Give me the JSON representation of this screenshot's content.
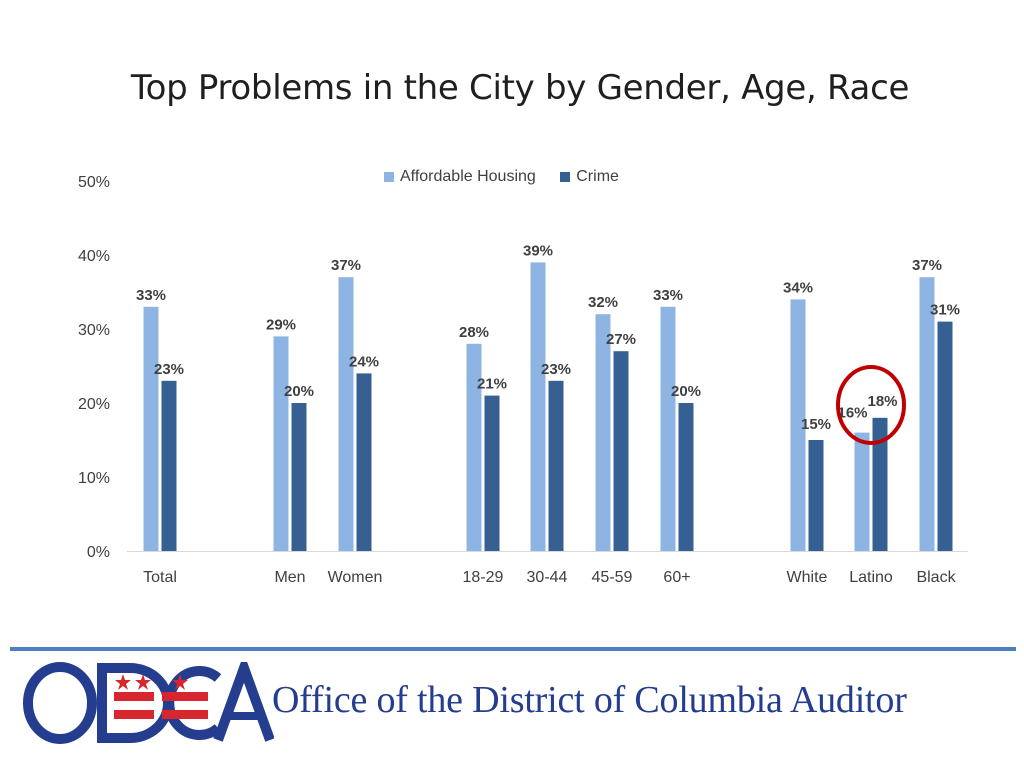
{
  "slide": {
    "title": "Top Problems in the City by Gender, Age, Race"
  },
  "chart_data": {
    "type": "bar",
    "categories": [
      "Total",
      "Men",
      "Women",
      "18-29",
      "30-44",
      "45-59",
      "60+",
      "White",
      "Latino",
      "Black"
    ],
    "series": [
      {
        "name": "Affordable Housing",
        "values": [
          33,
          29,
          37,
          28,
          39,
          32,
          33,
          34,
          16,
          37
        ],
        "color": "#8db4e2"
      },
      {
        "name": "Crime",
        "values": [
          23,
          20,
          24,
          21,
          23,
          27,
          20,
          15,
          18,
          31
        ],
        "color": "#376092"
      }
    ],
    "value_labels": {
      "Affordable Housing": [
        "33%",
        "29%",
        "37%",
        "28%",
        "39%",
        "32%",
        "33%",
        "34%",
        "16%",
        "37%"
      ],
      "Crime": [
        "23%",
        "20%",
        "24%",
        "21%",
        "23%",
        "27%",
        "20%",
        "15%",
        "18%",
        "31%"
      ]
    },
    "ytick_labels": [
      "0%",
      "10%",
      "20%",
      "30%",
      "40%",
      "50%"
    ],
    "ylim": [
      0,
      50
    ],
    "grid": false,
    "legend_position": "top-center",
    "highlight_category": "Latino",
    "highlight_color": "#c00000",
    "title": "",
    "xlabel": "",
    "ylabel": ""
  },
  "footer": {
    "logo_text": "ODCA",
    "org_name": "Office of the District of Columbia Auditor",
    "logo_color": "#253d8f",
    "flag_color": "#d7262e",
    "rule_color": "#4e7fbf"
  }
}
